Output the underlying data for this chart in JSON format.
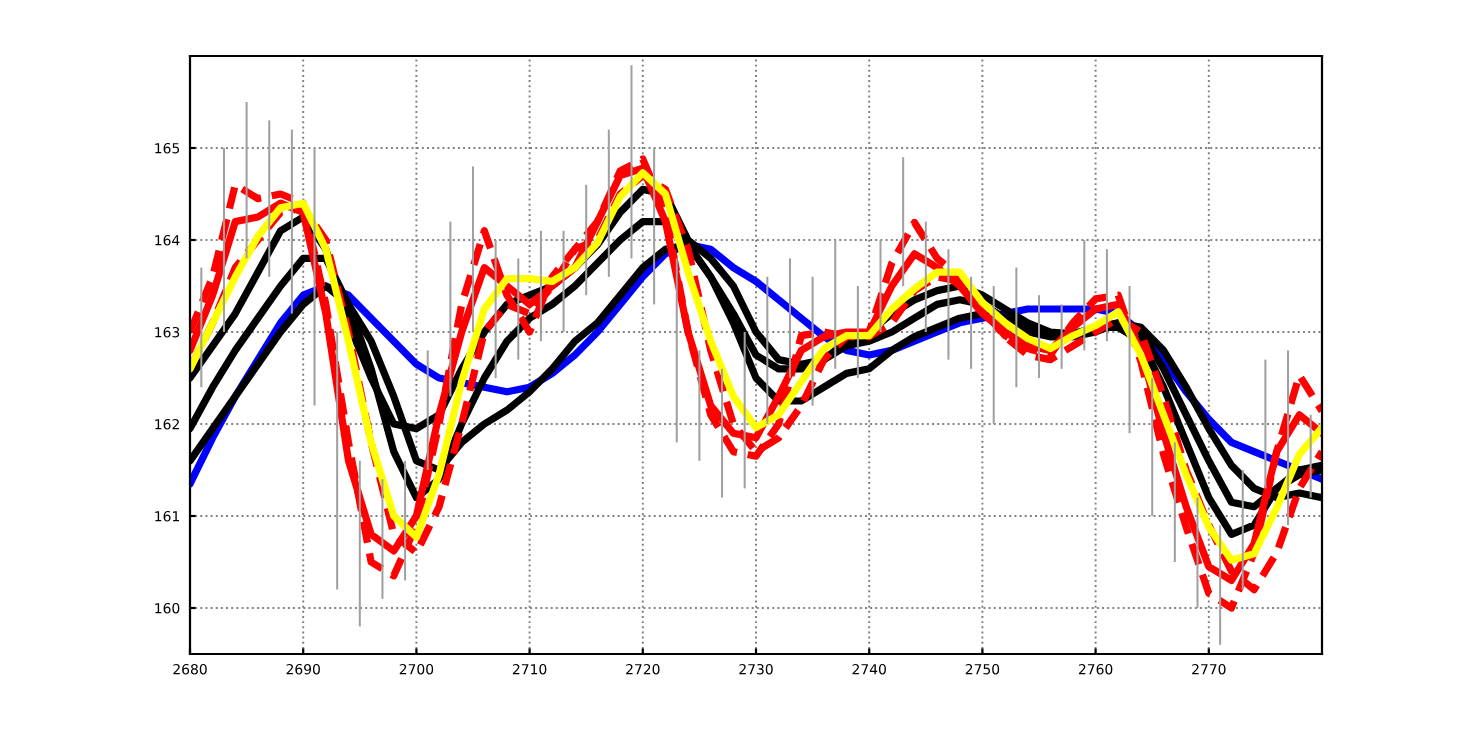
{
  "chart_data": {
    "type": "line",
    "x": [
      2680,
      2682,
      2684,
      2686,
      2688,
      2690,
      2692,
      2694,
      2696,
      2698,
      2700,
      2702,
      2704,
      2706,
      2708,
      2710,
      2712,
      2714,
      2716,
      2718,
      2720,
      2722,
      2724,
      2726,
      2728,
      2730,
      2732,
      2734,
      2736,
      2738,
      2740,
      2742,
      2744,
      2746,
      2748,
      2750,
      2752,
      2754,
      2756,
      2758,
      2760,
      2762,
      2764,
      2766,
      2768,
      2770,
      2772,
      2774,
      2776,
      2778,
      2780
    ],
    "xlim": [
      2680,
      2780
    ],
    "xticks": [
      2680,
      2690,
      2700,
      2710,
      2720,
      2730,
      2740,
      2750,
      2760,
      2770
    ],
    "ylim": [
      159.5,
      166
    ],
    "yticks": [
      160,
      161,
      162,
      163,
      164,
      165
    ],
    "grid": true,
    "legend": false,
    "series": [
      {
        "type": "bar",
        "color": "#a0a0a0",
        "x": [
          2681,
          2683,
          2685,
          2687,
          2689,
          2691,
          2693,
          2695,
          2697,
          2699,
          2701,
          2703,
          2705,
          2707,
          2709,
          2711,
          2713,
          2715,
          2717,
          2719,
          2721,
          2723,
          2725,
          2727,
          2729,
          2731,
          2733,
          2735,
          2737,
          2739,
          2741,
          2743,
          2745,
          2747,
          2749,
          2751,
          2753,
          2755,
          2757,
          2759,
          2761,
          2763,
          2765,
          2767,
          2769,
          2771,
          2773,
          2775,
          2777,
          2779
        ],
        "base": [
          162.4,
          163.0,
          163.8,
          163.6,
          163.2,
          162.2,
          160.2,
          159.8,
          160.1,
          160.3,
          161.5,
          162.3,
          163.0,
          162.5,
          162.7,
          162.9,
          163.0,
          163.4,
          163.6,
          163.8,
          163.3,
          161.8,
          161.6,
          161.2,
          161.3,
          162.0,
          162.5,
          162.2,
          162.6,
          162.5,
          163.0,
          163.5,
          163.0,
          162.7,
          162.6,
          162.0,
          162.4,
          162.5,
          162.6,
          162.8,
          162.9,
          161.9,
          161.0,
          160.5,
          160.0,
          159.6,
          160.2,
          161.3,
          160.9,
          161.2
        ],
        "values": [
          1.3,
          2.0,
          1.7,
          1.7,
          2.0,
          2.8,
          2.8,
          1.8,
          1.3,
          1.3,
          1.3,
          1.9,
          1.8,
          1.5,
          1.1,
          1.2,
          1.1,
          1.2,
          1.6,
          2.1,
          1.7,
          2.0,
          1.2,
          1.4,
          1.7,
          1.6,
          1.3,
          1.4,
          1.4,
          1.0,
          1.0,
          1.4,
          1.2,
          1.2,
          1.0,
          1.5,
          1.3,
          0.9,
          0.7,
          1.2,
          1.0,
          1.6,
          1.5,
          1.3,
          1.2,
          1.3,
          1.3,
          1.4,
          1.9,
          0.9
        ]
      },
      {
        "color": "#0000ff",
        "line_style": "solid",
        "values": [
          161.35,
          161.85,
          162.3,
          162.7,
          163.1,
          163.4,
          163.5,
          163.4,
          163.15,
          162.9,
          162.65,
          162.5,
          162.45,
          162.4,
          162.35,
          162.4,
          162.55,
          162.75,
          163.0,
          163.3,
          163.6,
          163.85,
          163.95,
          163.9,
          163.7,
          163.55,
          163.35,
          163.15,
          162.95,
          162.8,
          162.75,
          162.8,
          162.9,
          163.0,
          163.1,
          163.15,
          163.2,
          163.25,
          163.25,
          163.25,
          163.25,
          163.2,
          163.0,
          162.7,
          162.35,
          162.05,
          161.8,
          161.7,
          161.6,
          161.5,
          161.4
        ]
      },
      {
        "color": "#000000",
        "line_style": "solid",
        "values": [
          161.6,
          161.95,
          162.3,
          162.65,
          163.0,
          163.3,
          163.5,
          163.3,
          162.9,
          162.3,
          161.6,
          161.5,
          161.8,
          162.0,
          162.15,
          162.35,
          162.6,
          162.9,
          163.1,
          163.4,
          163.7,
          163.9,
          163.95,
          163.6,
          163.1,
          162.5,
          162.25,
          162.25,
          162.4,
          162.55,
          162.6,
          162.8,
          162.95,
          163.05,
          163.15,
          163.2,
          163.1,
          163.0,
          162.95,
          162.95,
          163.0,
          163.1,
          163.05,
          162.8,
          162.4,
          161.95,
          161.55,
          161.3,
          161.2,
          161.25,
          161.2
        ]
      },
      {
        "color": "#000000",
        "line_style": "solid",
        "values": [
          161.95,
          162.4,
          162.8,
          163.15,
          163.5,
          163.8,
          163.8,
          163.3,
          162.6,
          161.7,
          161.2,
          161.4,
          162.0,
          162.5,
          162.9,
          163.15,
          163.3,
          163.5,
          163.75,
          164.0,
          164.2,
          164.2,
          163.95,
          163.6,
          163.2,
          162.75,
          162.6,
          162.6,
          162.7,
          162.85,
          162.9,
          163.0,
          163.15,
          163.3,
          163.35,
          163.3,
          163.15,
          163.05,
          162.95,
          162.95,
          163.05,
          163.1,
          163.0,
          162.6,
          162.1,
          161.6,
          161.15,
          161.1,
          161.3,
          161.45,
          161.5
        ]
      },
      {
        "color": "#000000",
        "line_style": "solid",
        "values": [
          162.5,
          162.85,
          163.2,
          163.65,
          164.1,
          164.25,
          163.9,
          163.1,
          162.5,
          162.0,
          161.95,
          162.1,
          162.6,
          163.0,
          163.3,
          163.4,
          163.5,
          163.7,
          163.95,
          164.3,
          164.55,
          164.5,
          164.0,
          163.8,
          163.5,
          163.0,
          162.7,
          162.65,
          162.7,
          162.9,
          163.0,
          163.2,
          163.35,
          163.45,
          163.5,
          163.4,
          163.25,
          163.1,
          163.0,
          162.98,
          163.05,
          163.05,
          162.9,
          162.4,
          161.8,
          161.2,
          160.8,
          160.9,
          161.3,
          161.5,
          161.55
        ]
      },
      {
        "color": "#ff0000",
        "line_style": "dashed",
        "values": [
          162.6,
          163.1,
          163.7,
          164.0,
          164.3,
          164.35,
          164.0,
          163.0,
          161.8,
          160.8,
          160.6,
          161.1,
          162.0,
          163.0,
          163.3,
          163.2,
          163.5,
          163.9,
          164.0,
          164.5,
          164.7,
          164.55,
          163.9,
          162.8,
          162.0,
          161.7,
          161.85,
          162.2,
          162.7,
          162.95,
          162.95,
          163.1,
          163.45,
          163.6,
          163.55,
          163.25,
          162.95,
          162.75,
          162.7,
          162.85,
          163.0,
          163.15,
          163.0,
          162.3,
          161.5,
          160.9,
          160.4,
          160.2,
          160.6,
          161.3,
          161.7
        ]
      },
      {
        "color": "#ff0000",
        "line_style": "solid",
        "values": [
          162.8,
          163.4,
          164.2,
          164.25,
          164.4,
          164.3,
          163.2,
          161.6,
          160.8,
          160.62,
          161.0,
          162.1,
          163.0,
          163.7,
          163.5,
          163.3,
          163.5,
          163.7,
          164.2,
          164.7,
          164.78,
          164.2,
          163.0,
          162.2,
          161.9,
          161.85,
          162.3,
          162.8,
          162.95,
          163.0,
          163.0,
          163.5,
          163.85,
          163.7,
          163.5,
          163.2,
          163.0,
          162.85,
          162.8,
          163.05,
          163.25,
          163.3,
          162.8,
          161.9,
          161.1,
          160.45,
          160.3,
          160.7,
          161.7,
          162.1,
          161.9
        ]
      },
      {
        "color": "#ff0000",
        "line_style": "dashed",
        "values": [
          163.0,
          163.6,
          164.6,
          164.45,
          164.5,
          164.4,
          163.3,
          161.8,
          160.5,
          160.35,
          160.9,
          162.0,
          163.3,
          164.1,
          163.4,
          163.0,
          163.6,
          163.9,
          164.2,
          164.75,
          164.88,
          164.3,
          163.0,
          162.1,
          161.7,
          161.65,
          162.0,
          162.96,
          163.0,
          162.95,
          163.0,
          163.75,
          164.19,
          163.8,
          163.6,
          163.25,
          162.96,
          162.82,
          162.75,
          163.1,
          163.36,
          163.4,
          162.68,
          161.67,
          160.88,
          160.16,
          160.0,
          160.6,
          161.7,
          162.53,
          162.14
        ]
      },
      {
        "color": "#ffff00",
        "line_style": "solid",
        "values": [
          162.6,
          163.1,
          163.6,
          164.04,
          164.35,
          164.4,
          163.9,
          162.9,
          161.8,
          161.0,
          160.77,
          161.45,
          162.46,
          163.25,
          163.58,
          163.58,
          163.55,
          163.7,
          163.97,
          164.47,
          164.73,
          164.5,
          163.65,
          162.9,
          162.3,
          161.96,
          162.1,
          162.46,
          162.82,
          162.96,
          162.96,
          163.25,
          163.47,
          163.65,
          163.65,
          163.32,
          163.1,
          162.93,
          162.82,
          162.96,
          163.07,
          163.22,
          162.75,
          162.1,
          161.45,
          160.88,
          160.52,
          160.59,
          161.09,
          161.67,
          161.96
        ]
      }
    ]
  }
}
